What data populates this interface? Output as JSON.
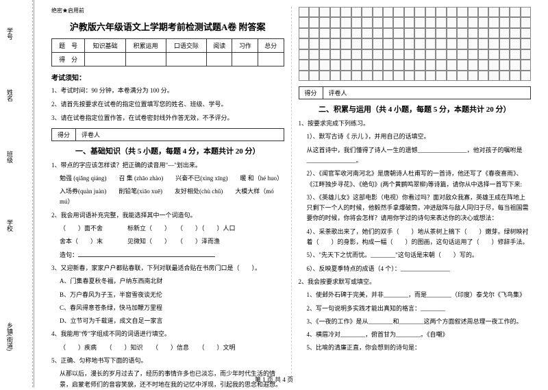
{
  "sidebar": {
    "labels": [
      "学号",
      "姓名",
      "班级",
      "学校",
      "乡镇(街道)"
    ],
    "marks": [
      "装",
      "订",
      "线",
      "内",
      "不"
    ]
  },
  "header": {
    "confidential": "绝密★启用前",
    "title": "沪教版六年级语文上学期考前检测试题A卷 附答案"
  },
  "scoreTable": {
    "row1": [
      "题　号",
      "知识基础",
      "积累运用",
      "口语交际",
      "阅读",
      "习作",
      "总分"
    ],
    "row2": [
      "得　分",
      "",
      "",
      "",
      "",
      "",
      ""
    ]
  },
  "notice": {
    "heading": "考试须知：",
    "items": [
      "1、考试时间：90 分钟，本卷满分为 100 分。",
      "2、请首先按要求在试卷的指定位置填写您的姓名、班级、学号。",
      "3、请在试卷指定位置作答，在试卷密封线外作答无效，不予评分。"
    ]
  },
  "scoreBar": {
    "left": "得分",
    "right": "评卷人"
  },
  "section1": {
    "title": "一、基础知识（共 5 小题，每题 4 分，本题共计 20 分）",
    "q1": {
      "stem": "1、带点的字应该怎样读？把正确的读音用\"—\"划出来。",
      "lines": [
        "勉强 (qiǎng qiáng)　　召 集 (zhāo zhào)　　兴奋不已(xìng xīng)　　暖 和（hé huo）",
        "入场券(quàn juàn)　　削铅笔(xiāo xuē)　　友好相处(chù chǔ)　　大模大样（mó mú）"
      ]
    },
    "q2": {
      "stem": "2、我会用词语补充完整，我能选择其中一个词造句。",
      "lines": [
        "（　　）面不舍　　　　标新立（　　）　　（　　）（　　）人口",
        "舍本（　　）末　　　　见微知（　　）　　（　　）泽而渔"
      ],
      "answer": "造句："
    },
    "q3": {
      "stem": "3、又迎新春，家家户户都贴春联，下列对联最适合贴在书房门口是（　　）。",
      "opts": [
        "A、门集春夏秋冬福，户纳东西南北财",
        "B、万户春风为子玉，半窗雪夜谈无伦",
        "C、春风得意苍条绿，快马加鞭万里程",
        "D、立节可为千载道，成文自足一家言"
      ]
    },
    "q4": {
      "stem": "4、我能用\"传\"字组成不同的词语进行填空。",
      "line": "（　　）疾病　　（　　）知识　　（　　）信息　　（　　）文明"
    },
    "q5": {
      "stem": "5、正确、匀称地书写下面的语句。",
      "text": "从那以后，漫长的岁月过去了，经历的事情许多也已淡忘，而少年时代生活的情景，启蒙老师们的音容笑貌，还不时地在我的记忆中浮现，引起我的思念和遐想。"
    }
  },
  "section2": {
    "title": "二、积累与运用（共 4 小题，每题 5 分，本题共计 20 分）",
    "q1": {
      "stem": "1、按要求完成下列练习。",
      "sub1": "1）、默写古诗《 示儿 》，并用自己的话填空。",
      "line1": "从这首诗中，我们懂得了诗人一生的遗憾________________，他对孩子的嘱咐是________________。",
      "sub2": "2）、《闻官军收河南河北》是唐朝诗人杜甫写的一首诗，他还写了《春夜喜雨》、《江畔独步寻花》、《绝句》(两个黄鹂鸣翠柳)等诗篇，请你从中选择一首写下来:",
      "sub3": "3）、《英雄儿女》这部电影（电视）你看过吗？面对敌众我寡，英雄王成在阵地上只剩下一个人的时候，他毅然手拿爆破筒，冲进敌阵与敌人同归于尽，每当祖国需要你的时候，你将会怎样？请用你学过的诗句来表达你的决心或想法：",
      "sub4": "4）、采荼歌出来了，她们的双手（　　）地从茶树上摘下（　　）嫩芽。绿树映衬着（　　）的身影，构成一幅（　　）的图画，这句话运用了（　　）修辞手法。",
      "sub5": "5）、\"先天下之忧而忧。________\"这句话是宋朝（　　）写的。",
      "sub6": "6）、反映夏季特点的成语（4 个）：________________"
    },
    "q2": {
      "stem": "2、我会按要求默写或填空。",
      "sub1": "1、使邺外石碑于完美，并非________，而是________（印度）泰戈尔《飞鸟集》",
      "sub2": "2、写一句说明多实践才能出真知的格言：________",
      "sub3": "3、《一夜的工作》是从________和________这两个方面叙述周总理一夜工作的。",
      "sub4": "4、横眉冷对________，俯首甘为________。《自嘲》",
      "sub5": "5、比喻的清廉正直，你会想到的诗句是："
    }
  },
  "footer": "第 1 页 共 4 页"
}
